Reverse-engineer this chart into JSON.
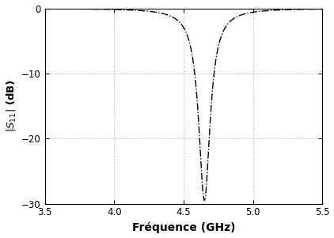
{
  "xlim": [
    3.5,
    5.5
  ],
  "ylim": [
    -30,
    0
  ],
  "xticks": [
    3.5,
    4.0,
    4.5,
    5.0,
    5.5
  ],
  "yticks": [
    0,
    -10,
    -20,
    -30
  ],
  "xlabel": "Fréquence (GHz)",
  "ylabel": "$|S_{11}|$ (dB)",
  "resonance_freq": 4.65,
  "resonance_depth": -29.5,
  "bandwidth": 0.1,
  "line_color": "#000000",
  "grid_color": "#b0b0b0",
  "background_color": "#ffffff",
  "figsize": [
    4.22,
    3.01
  ],
  "dpi": 100
}
